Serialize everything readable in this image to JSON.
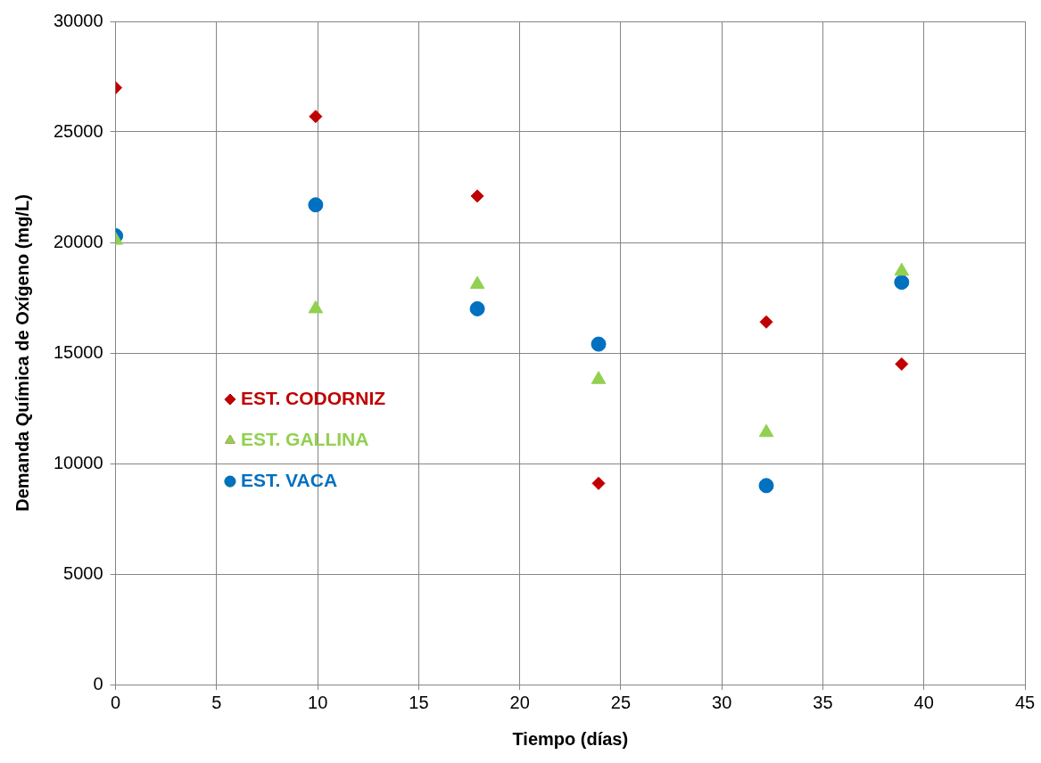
{
  "chart_data": {
    "type": "scatter",
    "xlabel": "Tiempo (días)",
    "ylabel": "Demanda Química de Oxígeno (mg/L)",
    "xlim": [
      0,
      45
    ],
    "xticks": [
      0,
      5,
      10,
      15,
      20,
      25,
      30,
      35,
      40,
      45
    ],
    "ylim": [
      0,
      30000
    ],
    "yticks": [
      0,
      5000,
      10000,
      15000,
      20000,
      25000,
      30000
    ],
    "grid": true,
    "legend": "left",
    "series": [
      {
        "name": "EST. CODORNIZ",
        "color": "#c00000",
        "marker": "diamond",
        "x": [
          0,
          9.9,
          17.9,
          23.9,
          32.2,
          38.9
        ],
        "values": [
          27000,
          25700,
          22100,
          9100,
          16400,
          14500
        ]
      },
      {
        "name": "EST. GALLINA",
        "color": "#92d050",
        "marker": "triangle",
        "x": [
          0,
          9.9,
          17.9,
          23.9,
          32.2,
          38.9
        ],
        "values": [
          20100,
          17000,
          18100,
          13800,
          11400,
          18700
        ]
      },
      {
        "name": "EST. VACA",
        "color": "#0070c0",
        "marker": "circle",
        "x": [
          0,
          9.9,
          17.9,
          23.9,
          32.2,
          38.9
        ],
        "values": [
          20300,
          21700,
          17000,
          15400,
          9000,
          18200
        ]
      }
    ]
  }
}
